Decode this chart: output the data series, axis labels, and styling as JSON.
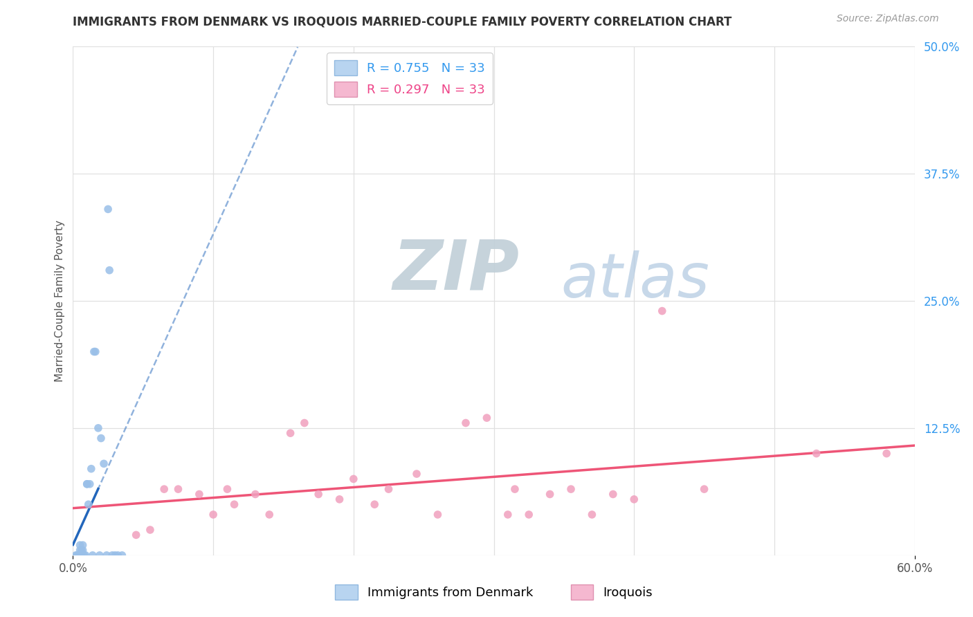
{
  "title": "IMMIGRANTS FROM DENMARK VS IROQUOIS MARRIED-COUPLE FAMILY POVERTY CORRELATION CHART",
  "source": "Source: ZipAtlas.com",
  "ylabel": "Married-Couple Family Poverty",
  "xlim": [
    0.0,
    0.6
  ],
  "ylim": [
    0.0,
    0.5
  ],
  "legend1_label": "R = 0.755   N = 33",
  "legend2_label": "R = 0.297   N = 33",
  "legend1_color": "#b8d4f0",
  "legend2_color": "#f5b8d0",
  "line1_color": "#2266bb",
  "line2_color": "#ee5577",
  "scatter1_color": "#99bfe8",
  "scatter2_color": "#f0a0be",
  "watermark_zip_color": "#c8d8e8",
  "watermark_atlas_color": "#b8cce0",
  "background_color": "#ffffff",
  "grid_color": "#e0e0e0",
  "right_tick_color": "#3399ee",
  "axis_label_color": "#555555",
  "dk_x": [
    0.002,
    0.003,
    0.003,
    0.004,
    0.004,
    0.005,
    0.005,
    0.005,
    0.006,
    0.006,
    0.007,
    0.007,
    0.008,
    0.009,
    0.01,
    0.01,
    0.011,
    0.012,
    0.013,
    0.014,
    0.015,
    0.016,
    0.018,
    0.019,
    0.02,
    0.022,
    0.024,
    0.025,
    0.026,
    0.028,
    0.03,
    0.032,
    0.035
  ],
  "dk_y": [
    0.0,
    0.0,
    0.0,
    0.0,
    0.0,
    0.0,
    0.005,
    0.01,
    0.0,
    0.005,
    0.005,
    0.01,
    0.0,
    0.0,
    0.07,
    0.07,
    0.05,
    0.07,
    0.085,
    0.0,
    0.2,
    0.2,
    0.125,
    0.0,
    0.115,
    0.09,
    0.0,
    0.34,
    0.28,
    0.0,
    0.0,
    0.0,
    0.0
  ],
  "iq_x": [
    0.045,
    0.055,
    0.065,
    0.075,
    0.09,
    0.1,
    0.11,
    0.115,
    0.13,
    0.14,
    0.155,
    0.165,
    0.175,
    0.19,
    0.2,
    0.215,
    0.225,
    0.245,
    0.26,
    0.28,
    0.295,
    0.31,
    0.315,
    0.325,
    0.34,
    0.355,
    0.37,
    0.385,
    0.4,
    0.42,
    0.45,
    0.53,
    0.58
  ],
  "iq_y": [
    0.02,
    0.025,
    0.065,
    0.065,
    0.06,
    0.04,
    0.065,
    0.05,
    0.06,
    0.04,
    0.12,
    0.13,
    0.06,
    0.055,
    0.075,
    0.05,
    0.065,
    0.08,
    0.04,
    0.13,
    0.135,
    0.04,
    0.065,
    0.04,
    0.06,
    0.065,
    0.04,
    0.06,
    0.055,
    0.24,
    0.065,
    0.1,
    0.1
  ]
}
